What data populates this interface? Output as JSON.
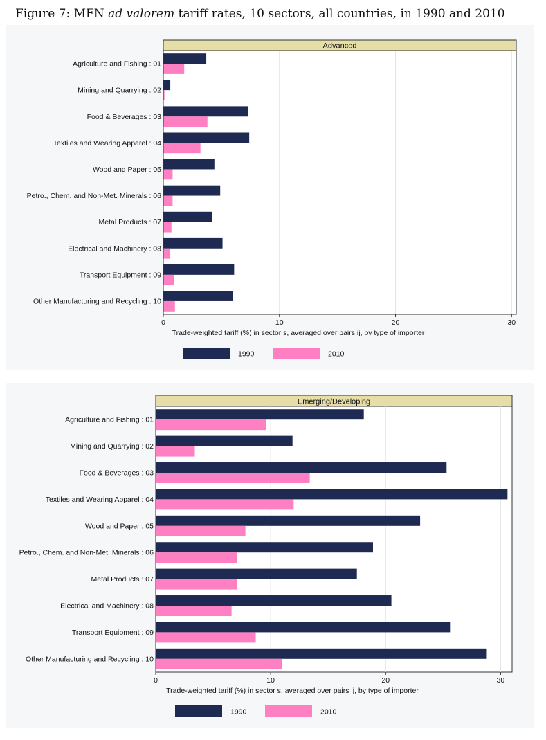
{
  "figure_title": {
    "prefix": "Figure 7: MFN ",
    "italic": "ad valorem",
    "suffix": " tariff rates, 10 sectors, all countries, in 1990 and 2010"
  },
  "colors": {
    "series_1990": "#1f2a52",
    "series_2010": "#ff7fc3",
    "strip": "#e6dea6",
    "plot_bg": "#ffffff",
    "panel_bg": "#f6f7f9"
  },
  "chart_data": [
    {
      "type": "bar",
      "orientation": "horizontal",
      "title": "Advanced",
      "xlabel": "Trade-weighted tariff (%) in sector s, averaged over pairs ij, by type of importer",
      "xlim": [
        0,
        30
      ],
      "xticks": [
        0,
        10,
        20,
        30
      ],
      "grid": true,
      "legend_position": "bottom",
      "categories": [
        "Agriculture and Fishing : 01",
        "Mining and Quarrying : 02",
        "Food & Beverages : 03",
        "Textiles and Wearing Apparel : 04",
        "Wood and Paper : 05",
        "Petro., Chem. and Non-Met. Minerals : 06",
        "Metal Products : 07",
        "Electrical and Machinery : 08",
        "Transport Equipment : 09",
        "Other Manufacturing and Recycling : 10"
      ],
      "series": [
        {
          "name": "1990",
          "values": [
            3.7,
            0.6,
            7.3,
            7.4,
            4.4,
            4.9,
            4.2,
            5.1,
            6.1,
            6.0
          ]
        },
        {
          "name": "2010",
          "values": [
            1.8,
            0.1,
            3.8,
            3.2,
            0.8,
            0.8,
            0.7,
            0.6,
            0.9,
            1.0
          ]
        }
      ]
    },
    {
      "type": "bar",
      "orientation": "horizontal",
      "title": "Emerging/Developing",
      "xlabel": "Trade-weighted tariff (%) in sector s, averaged over pairs ij, by type of importer",
      "xlim": [
        0,
        30
      ],
      "xticks": [
        0,
        10,
        20,
        30
      ],
      "grid": true,
      "legend_position": "bottom",
      "categories": [
        "Agriculture and Fishing : 01",
        "Mining and Quarrying : 02",
        "Food & Beverages : 03",
        "Textiles and Wearing Apparel : 04",
        "Wood and Paper : 05",
        "Petro., Chem. and Non-Met. Minerals : 06",
        "Metal Products : 07",
        "Electrical and Machinery : 08",
        "Transport Equipment : 09",
        "Other Manufacturing and Recycling : 10"
      ],
      "series": [
        {
          "name": "1990",
          "values": [
            18.1,
            11.9,
            25.3,
            30.6,
            23.0,
            18.9,
            17.5,
            20.5,
            25.6,
            28.8
          ]
        },
        {
          "name": "2010",
          "values": [
            9.6,
            3.4,
            13.4,
            12.0,
            7.8,
            7.1,
            7.1,
            6.6,
            8.7,
            11.0
          ]
        }
      ]
    }
  ]
}
